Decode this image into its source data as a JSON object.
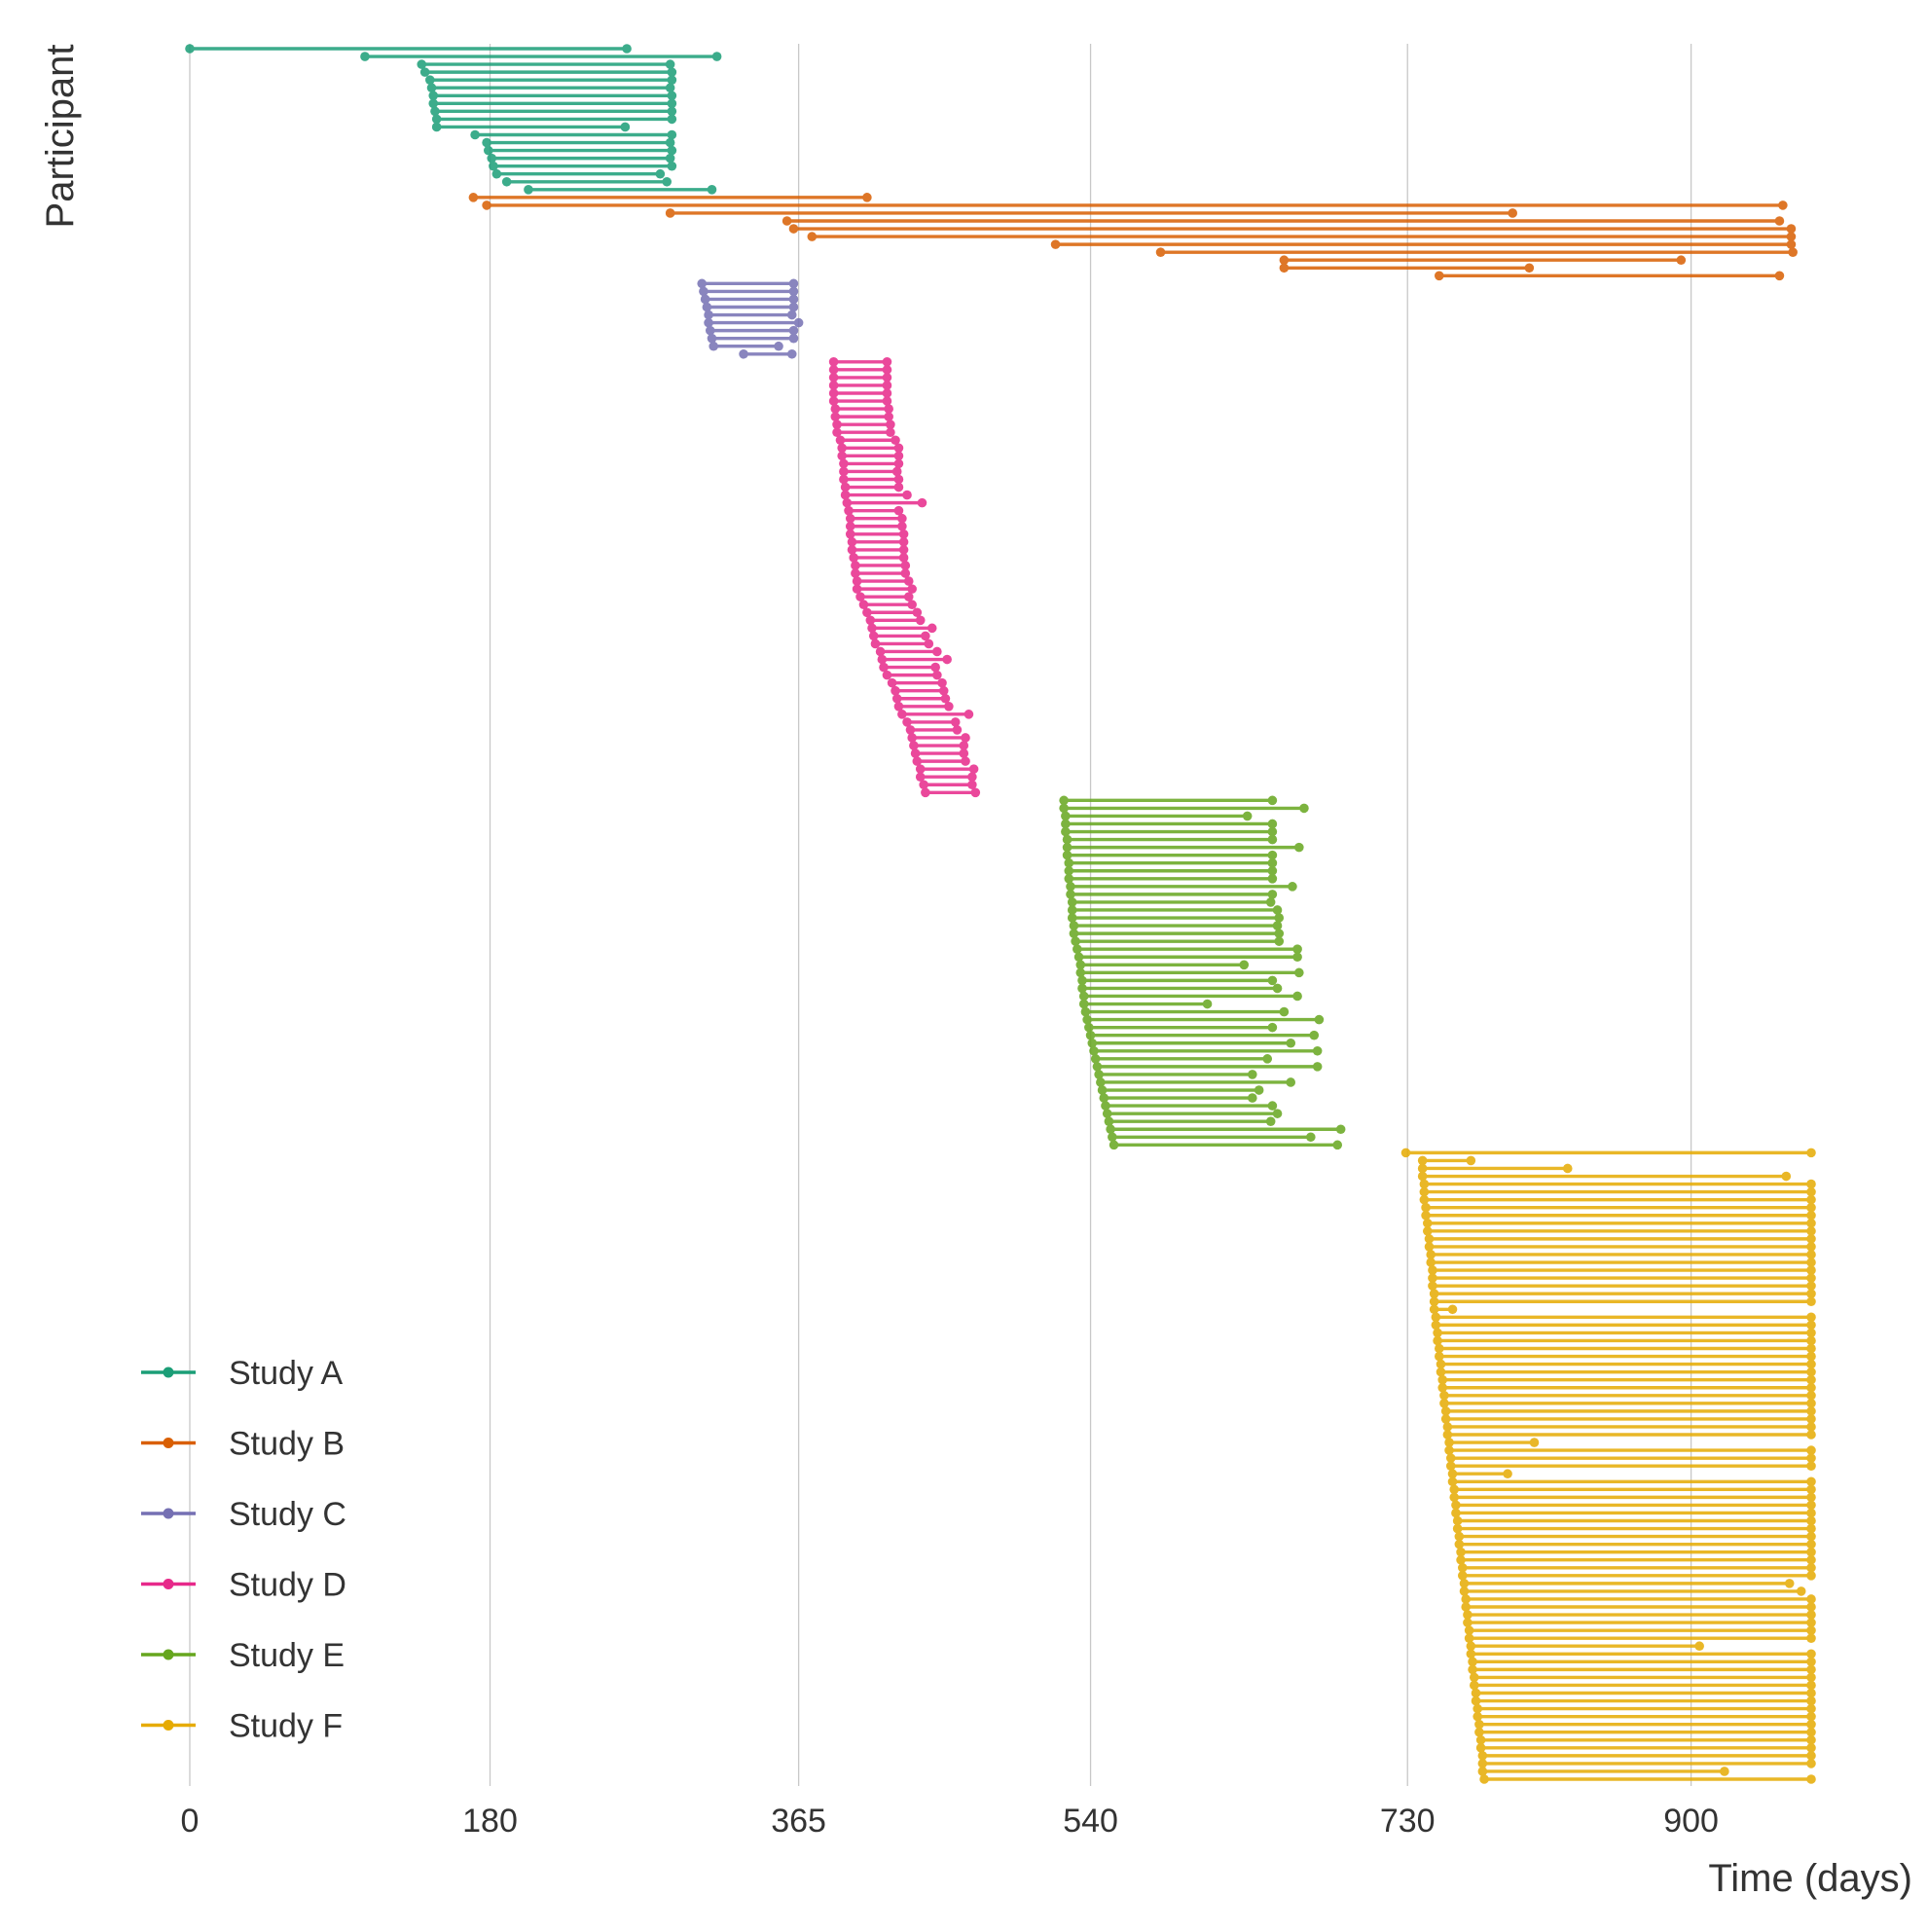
{
  "chart_data": {
    "type": "timeline",
    "title": "",
    "xlabel": "Time (days)",
    "ylabel": "Participant",
    "xlim": [
      0,
      975
    ],
    "xticks": [
      0,
      180,
      365,
      540,
      730,
      900
    ],
    "grid": "vertical",
    "legend_position": "bottom-left",
    "colors": {
      "Study A": "#1b9e77",
      "Study B": "#d95f02",
      "Study C": "#7570b3",
      "Study D": "#e7298a",
      "Study E": "#66a61e",
      "Study F": "#e6ab02"
    },
    "series": [
      {
        "name": "Study A",
        "segments": [
          [
            0,
            262
          ],
          [
            105,
            316
          ],
          [
            139,
            288
          ],
          [
            141,
            289
          ],
          [
            144,
            289
          ],
          [
            145,
            288
          ],
          [
            146,
            289
          ],
          [
            146,
            289
          ],
          [
            147,
            289
          ],
          [
            148,
            289
          ],
          [
            148,
            261
          ],
          [
            171,
            289
          ],
          [
            178,
            288
          ],
          [
            179,
            289
          ],
          [
            181,
            288
          ],
          [
            182,
            289
          ],
          [
            184,
            282
          ],
          [
            190,
            286
          ],
          [
            203,
            313
          ]
        ]
      },
      {
        "name": "Study B",
        "segments": [
          [
            170,
            406
          ],
          [
            178,
            955
          ],
          [
            288,
            793
          ],
          [
            358,
            953
          ],
          [
            362,
            960
          ],
          [
            373,
            960
          ],
          [
            519,
            960
          ],
          [
            582,
            961
          ],
          [
            656,
            894
          ],
          [
            656,
            803
          ],
          [
            749,
            953
          ]
        ]
      },
      {
        "name": "Study C",
        "segments": [
          [
            307,
            362
          ],
          [
            308,
            362
          ],
          [
            309,
            362
          ],
          [
            310,
            362
          ],
          [
            311,
            361
          ],
          [
            311,
            365
          ],
          [
            312,
            362
          ],
          [
            313,
            362
          ],
          [
            314,
            353
          ],
          [
            332,
            361
          ]
        ]
      },
      {
        "name": "Study D",
        "segments": [
          [
            386,
            418
          ],
          [
            386,
            418
          ],
          [
            386,
            418
          ],
          [
            386,
            418
          ],
          [
            386,
            418
          ],
          [
            386,
            418
          ],
          [
            387,
            419
          ],
          [
            387,
            419
          ],
          [
            388,
            420
          ],
          [
            388,
            420
          ],
          [
            390,
            423
          ],
          [
            391,
            425
          ],
          [
            391,
            425
          ],
          [
            392,
            425
          ],
          [
            392,
            424
          ],
          [
            392,
            425
          ],
          [
            393,
            425
          ],
          [
            393,
            430
          ],
          [
            394,
            439
          ],
          [
            395,
            425
          ],
          [
            396,
            427
          ],
          [
            396,
            427
          ],
          [
            396,
            428
          ],
          [
            397,
            428
          ],
          [
            397,
            428
          ],
          [
            398,
            428
          ],
          [
            399,
            429
          ],
          [
            399,
            429
          ],
          [
            400,
            431
          ],
          [
            400,
            433
          ],
          [
            402,
            431
          ],
          [
            404,
            433
          ],
          [
            406,
            436
          ],
          [
            408,
            438
          ],
          [
            409,
            445
          ],
          [
            410,
            441
          ],
          [
            411,
            443
          ],
          [
            414,
            448
          ],
          [
            415,
            454
          ],
          [
            416,
            447
          ],
          [
            418,
            448
          ],
          [
            421,
            451
          ],
          [
            423,
            452
          ],
          [
            424,
            453
          ],
          [
            425,
            455
          ],
          [
            427,
            467
          ],
          [
            430,
            459
          ],
          [
            432,
            460
          ],
          [
            433,
            465
          ],
          [
            434,
            464
          ],
          [
            435,
            464
          ],
          [
            436,
            465
          ],
          [
            438,
            470
          ],
          [
            438,
            469
          ],
          [
            440,
            469
          ],
          [
            441,
            471
          ]
        ]
      },
      {
        "name": "Study E",
        "segments": [
          [
            524,
            649
          ],
          [
            524,
            668
          ],
          [
            525,
            634
          ],
          [
            525,
            649
          ],
          [
            525,
            649
          ],
          [
            526,
            649
          ],
          [
            526,
            665
          ],
          [
            526,
            649
          ],
          [
            527,
            649
          ],
          [
            527,
            649
          ],
          [
            527,
            649
          ],
          [
            528,
            661
          ],
          [
            528,
            649
          ],
          [
            529,
            648
          ],
          [
            529,
            652
          ],
          [
            529,
            653
          ],
          [
            530,
            652
          ],
          [
            530,
            653
          ],
          [
            531,
            653
          ],
          [
            532,
            664
          ],
          [
            533,
            664
          ],
          [
            534,
            632
          ],
          [
            534,
            665
          ],
          [
            535,
            649
          ],
          [
            535,
            652
          ],
          [
            536,
            664
          ],
          [
            536,
            610
          ],
          [
            537,
            656
          ],
          [
            538,
            677
          ],
          [
            539,
            649
          ],
          [
            540,
            674
          ],
          [
            541,
            660
          ],
          [
            542,
            676
          ],
          [
            543,
            646
          ],
          [
            544,
            676
          ],
          [
            545,
            637
          ],
          [
            546,
            660
          ],
          [
            547,
            641
          ],
          [
            548,
            637
          ],
          [
            549,
            649
          ],
          [
            550,
            652
          ],
          [
            551,
            648
          ],
          [
            552,
            690
          ],
          [
            553,
            672
          ],
          [
            554,
            688
          ]
        ]
      },
      {
        "name": "Study F",
        "segments": [
          [
            729,
            972
          ],
          [
            739,
            768
          ],
          [
            739,
            826
          ],
          [
            739,
            957
          ],
          [
            740,
            972
          ],
          [
            740,
            972
          ],
          [
            740,
            972
          ],
          [
            741,
            972
          ],
          [
            741,
            972
          ],
          [
            742,
            972
          ],
          [
            742,
            972
          ],
          [
            743,
            972
          ],
          [
            743,
            972
          ],
          [
            744,
            972
          ],
          [
            744,
            972
          ],
          [
            745,
            972
          ],
          [
            745,
            972
          ],
          [
            745,
            972
          ],
          [
            746,
            972
          ],
          [
            746,
            972
          ],
          [
            746,
            757
          ],
          [
            747,
            972
          ],
          [
            747,
            972
          ],
          [
            748,
            972
          ],
          [
            748,
            972
          ],
          [
            749,
            972
          ],
          [
            749,
            972
          ],
          [
            750,
            972
          ],
          [
            750,
            972
          ],
          [
            751,
            972
          ],
          [
            751,
            972
          ],
          [
            752,
            972
          ],
          [
            752,
            972
          ],
          [
            753,
            972
          ],
          [
            753,
            972
          ],
          [
            754,
            972
          ],
          [
            754,
            972
          ],
          [
            755,
            806
          ],
          [
            755,
            972
          ],
          [
            756,
            972
          ],
          [
            756,
            972
          ],
          [
            757,
            790
          ],
          [
            757,
            972
          ],
          [
            758,
            972
          ],
          [
            758,
            972
          ],
          [
            759,
            972
          ],
          [
            759,
            972
          ],
          [
            760,
            972
          ],
          [
            760,
            972
          ],
          [
            761,
            972
          ],
          [
            761,
            972
          ],
          [
            762,
            972
          ],
          [
            762,
            972
          ],
          [
            763,
            972
          ],
          [
            763,
            972
          ],
          [
            764,
            959
          ],
          [
            764,
            966
          ],
          [
            765,
            972
          ],
          [
            765,
            972
          ],
          [
            766,
            972
          ],
          [
            766,
            972
          ],
          [
            767,
            972
          ],
          [
            767,
            972
          ],
          [
            768,
            905
          ],
          [
            768,
            972
          ],
          [
            769,
            972
          ],
          [
            769,
            972
          ],
          [
            770,
            972
          ],
          [
            770,
            972
          ],
          [
            771,
            972
          ],
          [
            771,
            972
          ],
          [
            772,
            972
          ],
          [
            772,
            972
          ],
          [
            773,
            972
          ],
          [
            773,
            972
          ],
          [
            774,
            972
          ],
          [
            774,
            972
          ],
          [
            775,
            972
          ],
          [
            775,
            972
          ],
          [
            775,
            920
          ],
          [
            776,
            972
          ]
        ]
      }
    ]
  }
}
